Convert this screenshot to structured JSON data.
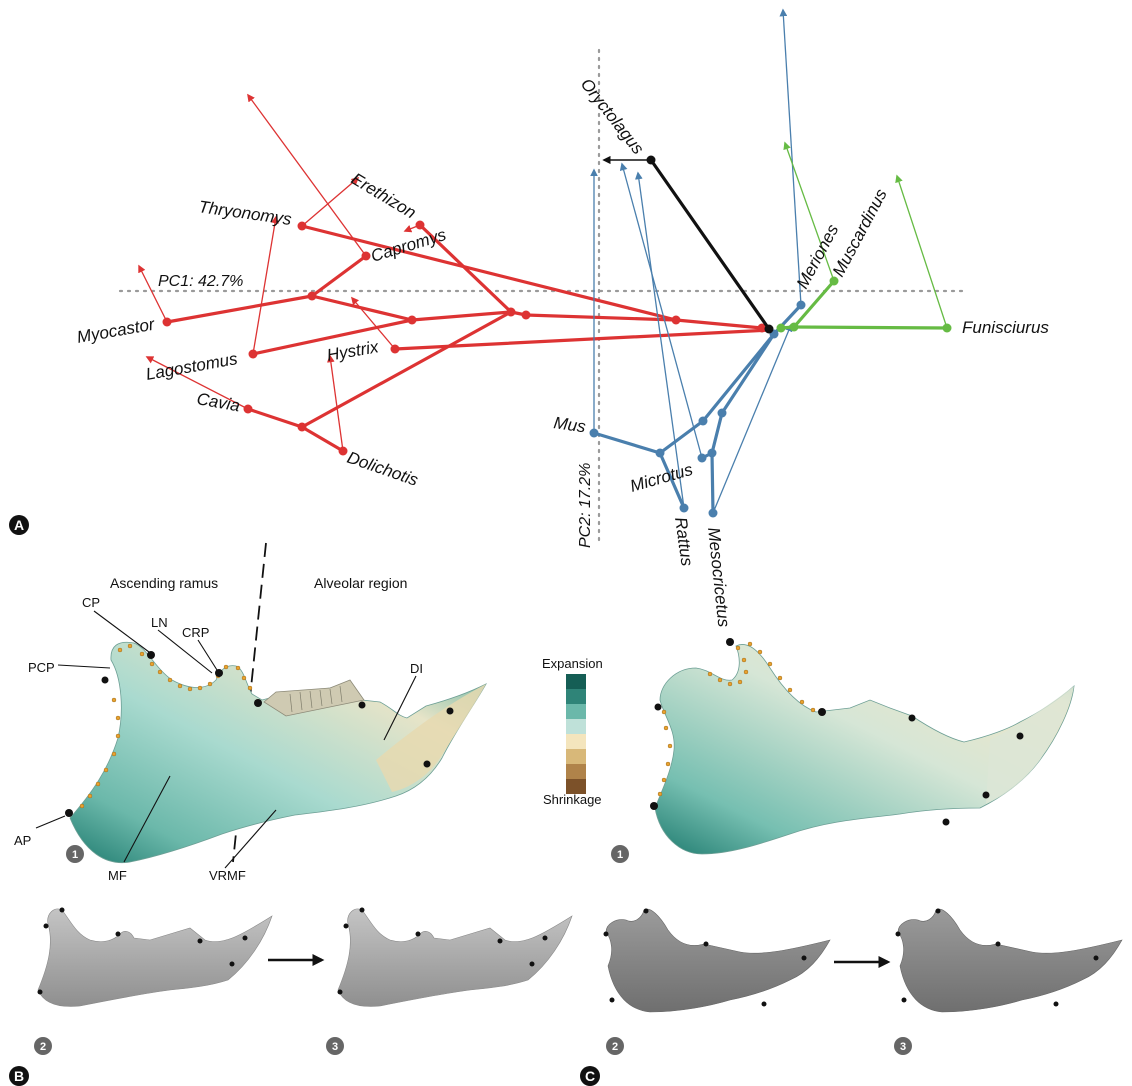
{
  "panels": {
    "A": "A",
    "B": "B",
    "C": "C"
  },
  "axes": {
    "pc1": "PC1: 42.7%",
    "pc2": "PC2: 17.2%"
  },
  "taxa": {
    "erethizon": "Erethizon",
    "thryonomys": "Thryonomys",
    "capromys": "Capromys",
    "myocastor": "Myocastor",
    "lagostomus": "Lagostomus",
    "hystrix": "Hystrix",
    "cavia": "Cavia",
    "dolichotis": "Dolichotis",
    "oryctolagus": "Oryctolagus",
    "meriones": "Meriones",
    "muscardinus": "Muscardinus",
    "funisciurus": "Funisciurus",
    "mus": "Mus",
    "microtus": "Microtus",
    "rattus": "Rattus",
    "mesocricetus": "Mesocricetus"
  },
  "regions": {
    "ascending": "Ascending ramus",
    "alveolar": "Alveolar region"
  },
  "landmarks": {
    "cp": "CP",
    "ln": "LN",
    "crp": "CRP",
    "pcp": "PCP",
    "di": "DI",
    "ap": "AP",
    "mf": "MF",
    "vrmf": "VRMF"
  },
  "legend": {
    "top": "Expansion",
    "bottom": "Shrinkage",
    "colors": [
      "#155e55",
      "#2f8478",
      "#6bb8aa",
      "#bfe1d9",
      "#f4e5bd",
      "#d8b879",
      "#b0834a",
      "#7c5129"
    ]
  },
  "steps": {
    "one": "1",
    "two": "2",
    "three": "3"
  },
  "colors": {
    "hystricognath": "#dd3333",
    "muroid": "#4a7fad",
    "sciuromorph": "#66bb44",
    "lagomorph": "#111111",
    "axis": "#9a9a9a",
    "tealSurface": "#8ccfc3",
    "greySurface": "#a8a8a8"
  }
}
